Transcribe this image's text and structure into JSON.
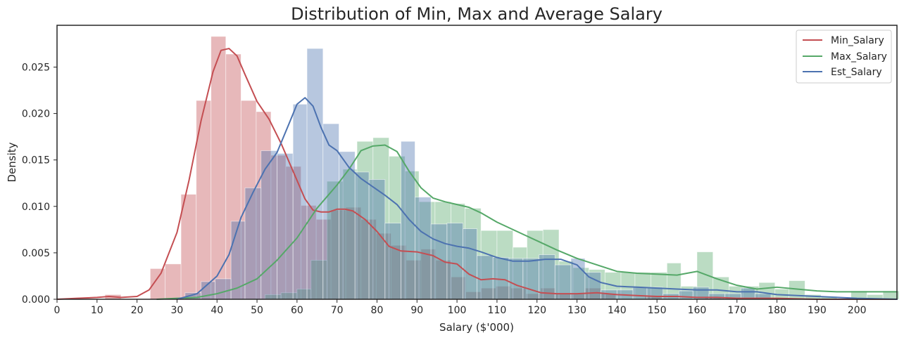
{
  "chart_data": {
    "type": "histogram",
    "title": "Distribution of Min, Max and Average Salary",
    "xlabel": "Salary ($'000)",
    "ylabel": "Density",
    "xlim": [
      0,
      210
    ],
    "ylim": [
      0,
      0.0295
    ],
    "xticks": [
      0,
      10,
      20,
      30,
      40,
      50,
      60,
      70,
      80,
      90,
      100,
      110,
      120,
      130,
      140,
      150,
      160,
      170,
      180,
      190,
      200
    ],
    "xtick_labels": [
      "0",
      "10",
      "20",
      "30",
      "40",
      "50",
      "60",
      "70",
      "80",
      "90",
      "100",
      "110",
      "120",
      "130",
      "140",
      "150",
      "160",
      "170",
      "180",
      "190",
      "200"
    ],
    "yticks": [
      0,
      0.005,
      0.01,
      0.015,
      0.02,
      0.025
    ],
    "ytick_labels": [
      "0.000",
      "0.005",
      "0.010",
      "0.015",
      "0.020",
      "0.025"
    ],
    "grid": false,
    "legend_position": "top-right",
    "series": [
      {
        "name": "Min_Salary",
        "color": "#c44e52",
        "hist": [
          [
            12,
            16,
            0.0005
          ],
          [
            23.3,
            27,
            0.0033
          ],
          [
            27,
            31,
            0.0038
          ],
          [
            31,
            34.8,
            0.0113
          ],
          [
            34.8,
            38.5,
            0.0214
          ],
          [
            38.5,
            42.2,
            0.0283
          ],
          [
            42.2,
            46,
            0.0264
          ],
          [
            46,
            49.8,
            0.0214
          ],
          [
            49.8,
            53.5,
            0.0202
          ],
          [
            53.5,
            57.2,
            0.0155
          ],
          [
            57.2,
            61,
            0.0143
          ],
          [
            61,
            64.8,
            0.0101
          ],
          [
            64.8,
            68.5,
            0.0086
          ],
          [
            68.5,
            72.2,
            0.0096
          ],
          [
            72.2,
            76,
            0.0099
          ],
          [
            76,
            79.8,
            0.0086
          ],
          [
            79.8,
            83.5,
            0.0071
          ],
          [
            83.5,
            87.3,
            0.0058
          ],
          [
            87.3,
            91,
            0.0042
          ],
          [
            91,
            94.7,
            0.0054
          ],
          [
            94.7,
            98.5,
            0.0042
          ],
          [
            98.5,
            102.2,
            0.0024
          ],
          [
            102.2,
            106,
            0.0008
          ],
          [
            106,
            109.7,
            0.0012
          ],
          [
            109.7,
            113.4,
            0.0014
          ],
          [
            113.4,
            117.2,
            0.0012
          ],
          [
            117.2,
            120.9,
            0.0006
          ],
          [
            120.9,
            124.6,
            0.0012
          ],
          [
            124.6,
            128.4,
            0.0006
          ],
          [
            128.4,
            132.1,
            0.0006
          ],
          [
            132.1,
            135.9,
            0.0012
          ],
          [
            135.9,
            139.6,
            0.0006
          ],
          [
            147,
            151,
            0.0004
          ],
          [
            162,
            166,
            0.0002
          ],
          [
            174,
            178,
            0.0002
          ]
        ],
        "kde_x": [
          0,
          5,
          10,
          13,
          16,
          20,
          23,
          26,
          30,
          33,
          36,
          39,
          41,
          43,
          45,
          47,
          50,
          53,
          56,
          59,
          62,
          64,
          66,
          68,
          70,
          72,
          74,
          77,
          80,
          83,
          86,
          90,
          94,
          97,
          100,
          103,
          106,
          109,
          112,
          115,
          118,
          121,
          125,
          130,
          135,
          140,
          145,
          150,
          155,
          160,
          165,
          170,
          180,
          190,
          200,
          210
        ],
        "kde_y": [
          0,
          0.0001,
          0.0002,
          0.0003,
          0.0002,
          0.0003,
          0.001,
          0.0028,
          0.0072,
          0.0128,
          0.0192,
          0.0245,
          0.0268,
          0.027,
          0.0262,
          0.0242,
          0.0213,
          0.0194,
          0.0168,
          0.0138,
          0.0108,
          0.0096,
          0.0094,
          0.0094,
          0.0097,
          0.0097,
          0.0095,
          0.0086,
          0.0073,
          0.0057,
          0.0052,
          0.0051,
          0.0047,
          0.004,
          0.0038,
          0.0027,
          0.0021,
          0.0022,
          0.0021,
          0.0015,
          0.0011,
          0.0007,
          0.0006,
          0.0006,
          0.0007,
          0.0005,
          0.0004,
          0.0003,
          0.0003,
          0.0002,
          0.0002,
          0.0001,
          0.0001,
          0,
          0,
          0
        ]
      },
      {
        "name": "Max_Salary",
        "color": "#55a868",
        "hist": [
          [
            52,
            56,
            0.0005
          ],
          [
            56,
            60,
            0.0007
          ],
          [
            60,
            63.5,
            0.0011
          ],
          [
            63.5,
            67.5,
            0.0042
          ],
          [
            67.5,
            71.5,
            0.0127
          ],
          [
            71.5,
            75,
            0.014
          ],
          [
            75,
            79,
            0.017
          ],
          [
            79,
            83,
            0.0174
          ],
          [
            83,
            87,
            0.0154
          ],
          [
            87,
            90.5,
            0.0138
          ],
          [
            90.5,
            94.5,
            0.0105
          ],
          [
            94.5,
            98.5,
            0.0105
          ],
          [
            98.5,
            102,
            0.0103
          ],
          [
            102,
            106,
            0.0098
          ],
          [
            106,
            110,
            0.0074
          ],
          [
            110,
            114,
            0.0074
          ],
          [
            114,
            117.5,
            0.0056
          ],
          [
            117.5,
            121.5,
            0.0074
          ],
          [
            121.5,
            125.5,
            0.0075
          ],
          [
            125.5,
            129,
            0.0041
          ],
          [
            129,
            133,
            0.0034
          ],
          [
            133,
            137,
            0.0032
          ],
          [
            137,
            141,
            0.0029
          ],
          [
            141,
            144.5,
            0.0029
          ],
          [
            144.5,
            148.5,
            0.0029
          ],
          [
            148.5,
            152.5,
            0.0029
          ],
          [
            152.5,
            156,
            0.0039
          ],
          [
            156,
            160,
            0.0014
          ],
          [
            160,
            164,
            0.0051
          ],
          [
            164,
            168,
            0.0024
          ],
          [
            168,
            171.5,
            0.0014
          ],
          [
            171.5,
            175.5,
            0.0014
          ],
          [
            175.5,
            179.5,
            0.0018
          ],
          [
            179.5,
            183,
            0.0011
          ],
          [
            183,
            187,
            0.002
          ],
          [
            187,
            191,
            0.0005
          ],
          [
            191,
            195,
            0.0003
          ],
          [
            198.5,
            202.5,
            0.0009
          ],
          [
            202.5,
            206.5,
            0.0005
          ],
          [
            206.5,
            210.5,
            0.0009
          ]
        ],
        "kde_x": [
          25,
          30,
          35,
          40,
          45,
          50,
          55,
          60,
          65,
          70,
          73,
          76,
          79,
          82,
          85,
          88,
          91,
          94,
          97,
          100,
          103,
          106,
          110,
          115,
          120,
          125,
          130,
          135,
          140,
          145,
          150,
          155,
          160,
          165,
          170,
          175,
          180,
          185,
          190,
          195,
          200,
          205,
          210
        ],
        "kde_y": [
          0,
          0.0001,
          0.0002,
          0.0006,
          0.0012,
          0.0022,
          0.0042,
          0.0066,
          0.0098,
          0.0123,
          0.014,
          0.016,
          0.0165,
          0.0166,
          0.0159,
          0.0138,
          0.012,
          0.0109,
          0.0105,
          0.0102,
          0.0099,
          0.0093,
          0.0083,
          0.0073,
          0.0063,
          0.0053,
          0.0044,
          0.0037,
          0.003,
          0.0028,
          0.0027,
          0.0026,
          0.003,
          0.0022,
          0.0015,
          0.0011,
          0.0013,
          0.0011,
          0.0009,
          0.0008,
          0.0008,
          0.0008,
          0.0008
        ]
      },
      {
        "name": "Est_Salary",
        "color": "#4c72b0",
        "hist": [
          [
            32,
            36,
            0.0007
          ],
          [
            36,
            39.5,
            0.0019
          ],
          [
            39.5,
            43.5,
            0.0022
          ],
          [
            43.5,
            47,
            0.0084
          ],
          [
            47,
            51,
            0.012
          ],
          [
            51,
            55,
            0.016
          ],
          [
            55,
            59,
            0.0157
          ],
          [
            59,
            62.5,
            0.021
          ],
          [
            62.5,
            66.5,
            0.027
          ],
          [
            66.5,
            70.5,
            0.0189
          ],
          [
            70.5,
            74.5,
            0.0159
          ],
          [
            74.5,
            78,
            0.0137
          ],
          [
            78,
            82,
            0.0129
          ],
          [
            82,
            86,
            0.0082
          ],
          [
            86,
            89.5,
            0.017
          ],
          [
            89.5,
            93.5,
            0.011
          ],
          [
            93.5,
            97.5,
            0.0081
          ],
          [
            97.5,
            101.5,
            0.0082
          ],
          [
            101.5,
            105,
            0.0076
          ],
          [
            105,
            109,
            0.0047
          ],
          [
            109,
            113,
            0.0045
          ],
          [
            113,
            116.5,
            0.0044
          ],
          [
            116.5,
            120.5,
            0.0044
          ],
          [
            120.5,
            124.5,
            0.0048
          ],
          [
            124.5,
            128.5,
            0.0037
          ],
          [
            128.5,
            132,
            0.0044
          ],
          [
            132,
            136,
            0.0029
          ],
          [
            136,
            140,
            0.001
          ],
          [
            140,
            144,
            0.001
          ],
          [
            144,
            147.5,
            0.0013
          ],
          [
            147.5,
            151.5,
            0.0013
          ],
          [
            151.5,
            155.5,
            0.0006
          ],
          [
            155.5,
            159,
            0.0009
          ],
          [
            159,
            163,
            0.0013
          ],
          [
            163,
            167,
            0.0006
          ],
          [
            167,
            171,
            0.0006
          ],
          [
            171,
            174.5,
            0.0012
          ],
          [
            174.5,
            178.5,
            0.0006
          ]
        ],
        "kde_x": [
          30,
          35,
          40,
          43,
          46,
          49,
          52,
          55,
          58,
          60,
          62,
          64,
          66,
          68,
          70,
          73,
          76,
          79,
          82,
          85,
          88,
          91,
          94,
          97,
          100,
          103,
          106,
          110,
          114,
          118,
          122,
          126,
          130,
          133,
          136,
          140,
          145,
          150,
          155,
          160,
          165,
          170,
          175,
          180,
          190,
          200,
          210
        ],
        "kde_y": [
          0,
          0.0006,
          0.0025,
          0.0048,
          0.0088,
          0.0115,
          0.014,
          0.0158,
          0.0189,
          0.021,
          0.0217,
          0.0208,
          0.0185,
          0.0166,
          0.016,
          0.0142,
          0.013,
          0.0121,
          0.0112,
          0.0102,
          0.0086,
          0.0073,
          0.0065,
          0.006,
          0.0057,
          0.0055,
          0.0051,
          0.0045,
          0.0041,
          0.0041,
          0.0043,
          0.0043,
          0.0037,
          0.0024,
          0.0018,
          0.0014,
          0.0013,
          0.0012,
          0.0011,
          0.001,
          0.001,
          0.0008,
          0.0008,
          0.0005,
          0.0003,
          0.0001,
          0
        ]
      }
    ]
  }
}
